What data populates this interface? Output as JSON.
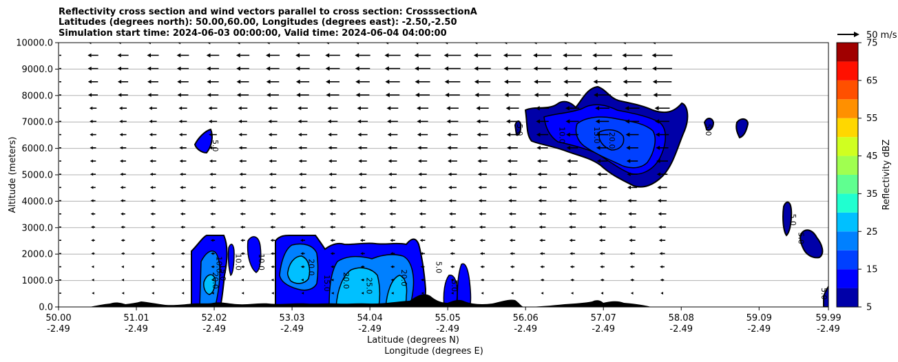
{
  "title_lines": [
    "Reflectivity cross section and wind vectors parallel to cross section: CrosssectionA",
    "Latitudes (degrees north): 50.00,60.00, Longitudes (degrees east): -2.50,-2.50",
    "Simulation start time: 2024-06-03 00:00:00, Valid time: 2024-06-04 04:00:00"
  ],
  "quiver_key": "50 m/s",
  "chart_data": {
    "type": "contourf",
    "xlabel": "Latitude (degrees N)",
    "xlabel2": "Longitude (degrees E)",
    "ylabel": "Altitude (meters)",
    "xlim": [
      50.0,
      59.99
    ],
    "ylim": [
      0,
      10000
    ],
    "x_ticks": [
      {
        "lat": "50.00",
        "lon": "-2.49",
        "value": 50.0
      },
      {
        "lat": "51.01",
        "lon": "-2.49",
        "value": 51.01
      },
      {
        "lat": "52.02",
        "lon": "-2.49",
        "value": 52.02
      },
      {
        "lat": "53.03",
        "lon": "-2.49",
        "value": 53.03
      },
      {
        "lat": "54.04",
        "lon": "-2.49",
        "value": 54.04
      },
      {
        "lat": "55.05",
        "lon": "-2.49",
        "value": 55.05
      },
      {
        "lat": "56.06",
        "lon": "-2.49",
        "value": 56.06
      },
      {
        "lat": "57.07",
        "lon": "-2.49",
        "value": 57.07
      },
      {
        "lat": "58.08",
        "lon": "-2.49",
        "value": 58.08
      },
      {
        "lat": "59.09",
        "lon": "-2.49",
        "value": 59.09
      },
      {
        "lat": "59.99",
        "lon": "-2.49",
        "value": 59.99
      }
    ],
    "y_ticks": [
      {
        "label": "0.0",
        "value": 0
      },
      {
        "label": "1000.0",
        "value": 1000
      },
      {
        "label": "2000.0",
        "value": 2000
      },
      {
        "label": "3000.0",
        "value": 3000
      },
      {
        "label": "4000.0",
        "value": 4000
      },
      {
        "label": "5000.0",
        "value": 5000
      },
      {
        "label": "6000.0",
        "value": 6000
      },
      {
        "label": "7000.0",
        "value": 7000
      },
      {
        "label": "8000.0",
        "value": 8000
      },
      {
        "label": "9000.0",
        "value": 9000
      },
      {
        "label": "10000.0",
        "value": 10000
      }
    ],
    "grid": "horizontal",
    "colorbar": {
      "label": "Reflectivity dBZ",
      "levels": [
        5,
        10,
        15,
        20,
        25,
        30,
        35,
        40,
        45,
        50,
        55,
        60,
        65,
        70,
        75
      ],
      "tick_labels": [
        "5",
        "15",
        "25",
        "35",
        "45",
        "55",
        "65",
        "75"
      ],
      "colors": [
        "#0000a8",
        "#0000ff",
        "#0040ff",
        "#0080ff",
        "#00c0ff",
        "#20ffd0",
        "#60ff90",
        "#a0ff50",
        "#d0ff20",
        "#ffd700",
        "#ff9000",
        "#ff5000",
        "#ff1000",
        "#a00000"
      ]
    },
    "contour_labels": [
      {
        "text": "5.0",
        "x": 52.0,
        "y": 6100
      },
      {
        "text": "10.0",
        "x": 52.05,
        "y": 1600
      },
      {
        "text": "15.0",
        "x": 52.1,
        "y": 1300
      },
      {
        "text": "20.0",
        "x": 52.0,
        "y": 1000
      },
      {
        "text": "10.0",
        "x": 52.3,
        "y": 1700
      },
      {
        "text": "10.0",
        "x": 52.6,
        "y": 1700
      },
      {
        "text": "20.0",
        "x": 53.25,
        "y": 1500
      },
      {
        "text": "15.0",
        "x": 53.45,
        "y": 900
      },
      {
        "text": "20.0",
        "x": 53.7,
        "y": 1000
      },
      {
        "text": "25.0",
        "x": 54.0,
        "y": 800
      },
      {
        "text": "20.0",
        "x": 54.45,
        "y": 1100
      },
      {
        "text": "5.0",
        "x": 54.9,
        "y": 1500
      },
      {
        "text": "5.0",
        "x": 55.1,
        "y": 800
      },
      {
        "text": "5.0",
        "x": 55.95,
        "y": 6700
      },
      {
        "text": "10.0",
        "x": 56.5,
        "y": 6500
      },
      {
        "text": "15.0",
        "x": 56.95,
        "y": 6500
      },
      {
        "text": "20.0",
        "x": 57.15,
        "y": 6300
      },
      {
        "text": "5.0",
        "x": 58.4,
        "y": 6700
      },
      {
        "text": "5.0",
        "x": 59.5,
        "y": 3300
      },
      {
        "text": "5.0",
        "x": 59.6,
        "y": 2600
      },
      {
        "text": "5.0",
        "x": 59.9,
        "y": 500
      }
    ]
  }
}
